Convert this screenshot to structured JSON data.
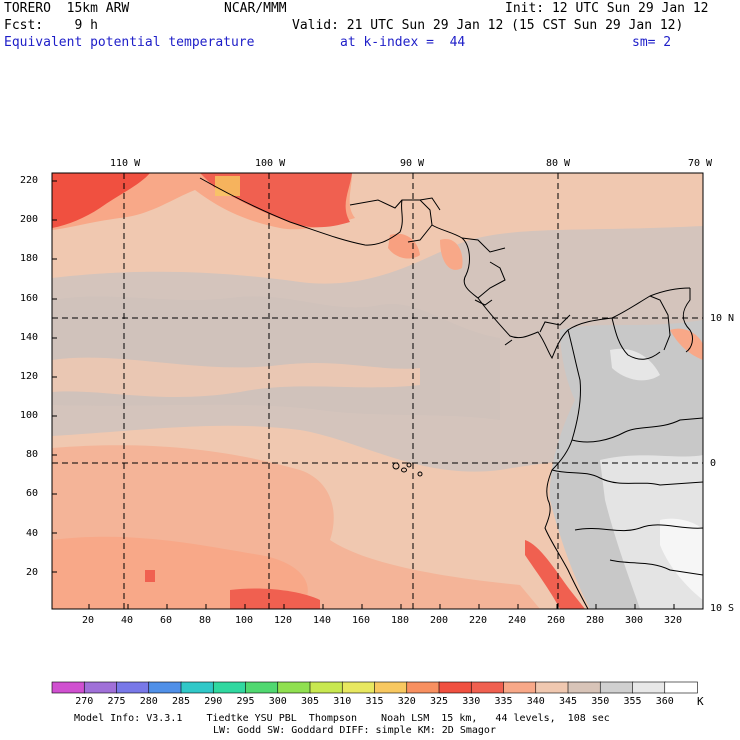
{
  "header": {
    "model": "TORERO  15km ARW",
    "center": "NCAR/MMM",
    "init": "Init: 12 UTC Sun 29 Jan 12",
    "fcst": "Fcst:    9 h",
    "valid": "Valid: 21 UTC Sun 29 Jan 12 (15 CST Sun 29 Jan 12)",
    "field": "Equivalent potential temperature",
    "level": "at k-index =  44",
    "smooth": "sm= 2"
  },
  "map": {
    "lon_labels": [
      "110 W",
      "100 W",
      "90 W",
      "80 W",
      "70 W"
    ],
    "lat_labels": [
      "10 N",
      "0",
      "10 S"
    ],
    "x_ticks": [
      "20",
      "40",
      "60",
      "80",
      "100",
      "120",
      "140",
      "160",
      "180",
      "200",
      "220",
      "240",
      "260",
      "280",
      "300",
      "320"
    ],
    "y_ticks": [
      "20",
      "40",
      "60",
      "80",
      "100",
      "120",
      "140",
      "160",
      "180",
      "200",
      "220"
    ],
    "x_range": [
      0,
      330
    ],
    "y_range": [
      0,
      225
    ]
  },
  "colorbar": {
    "levels": [
      "270",
      "275",
      "280",
      "285",
      "290",
      "295",
      "300",
      "305",
      "310",
      "315",
      "320",
      "325",
      "330",
      "335",
      "340",
      "345",
      "350",
      "355",
      "360"
    ],
    "unit": "K",
    "colors": [
      "#d050d0",
      "#a070d8",
      "#7878e8",
      "#5090e8",
      "#30c8c8",
      "#30d8a0",
      "#50d870",
      "#90e050",
      "#c8e850",
      "#e8e860",
      "#f8c860",
      "#f89060",
      "#f05040",
      "#f06050",
      "#f8a888",
      "#f0c8b0",
      "#d8c4b8",
      "#d0d0d0",
      "#e8e8e8",
      "#ffffff"
    ]
  },
  "footer": {
    "line1": "Model Info: V3.3.1    Tiedtke YSU PBL  Thompson    Noah LSM  15 km,   44 levels,  108 sec",
    "line2": "LW: Godd SW: Goddard DIFF: simple KM: 2D Smagor"
  },
  "colors": {
    "salmon": "#f0c8b0",
    "gray_taupe": "#d4c4bc",
    "gray_light": "#d0d0d0",
    "red_warm": "#f06050",
    "red_hot": "#f05040",
    "pink": "#f8a888",
    "white": "#f2f2f2"
  }
}
